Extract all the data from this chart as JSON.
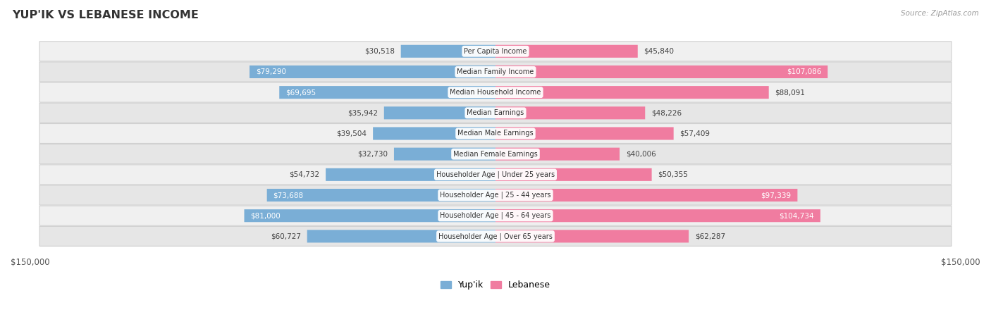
{
  "title": "YUP'IK VS LEBANESE INCOME",
  "source": "Source: ZipAtlas.com",
  "categories": [
    "Per Capita Income",
    "Median Family Income",
    "Median Household Income",
    "Median Earnings",
    "Median Male Earnings",
    "Median Female Earnings",
    "Householder Age | Under 25 years",
    "Householder Age | 25 - 44 years",
    "Householder Age | 45 - 64 years",
    "Householder Age | Over 65 years"
  ],
  "yupik_values": [
    30518,
    79290,
    69695,
    35942,
    39504,
    32730,
    54732,
    73688,
    81000,
    60727
  ],
  "lebanese_values": [
    45840,
    107086,
    88091,
    48226,
    57409,
    40006,
    50355,
    97339,
    104734,
    62287
  ],
  "yupik_labels": [
    "$30,518",
    "$79,290",
    "$69,695",
    "$35,942",
    "$39,504",
    "$32,730",
    "$54,732",
    "$73,688",
    "$81,000",
    "$60,727"
  ],
  "lebanese_labels": [
    "$45,840",
    "$107,086",
    "$88,091",
    "$48,226",
    "$57,409",
    "$40,006",
    "$50,355",
    "$97,339",
    "$104,734",
    "$62,287"
  ],
  "yupik_label_white": [
    false,
    true,
    true,
    false,
    false,
    false,
    false,
    true,
    true,
    false
  ],
  "lebanese_label_white": [
    false,
    true,
    false,
    false,
    false,
    false,
    false,
    true,
    true,
    false
  ],
  "max_value": 150000,
  "color_yupik": "#7aaed6",
  "color_lebanese": "#f07ca0",
  "color_yupik_light": "#c5dcf0",
  "color_lebanese_light": "#f9c0d4",
  "row_colors": [
    "#f0f0f0",
    "#e6e6e6"
  ],
  "legend_yupik": "Yup'ik",
  "legend_lebanese": "Lebanese",
  "center_label_bg": "#ffffff"
}
